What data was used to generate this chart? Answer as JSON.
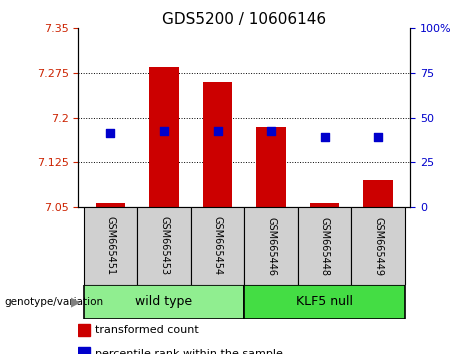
{
  "title": "GDS5200 / 10606146",
  "samples": [
    "GSM665451",
    "GSM665453",
    "GSM665454",
    "GSM665446",
    "GSM665448",
    "GSM665449"
  ],
  "red_bar_top": [
    7.057,
    7.285,
    7.26,
    7.185,
    7.057,
    7.095
  ],
  "red_bar_base": 7.05,
  "blue_dot_left": [
    7.175,
    7.178,
    7.178,
    7.178,
    7.168,
    7.168
  ],
  "ylim_left": [
    7.05,
    7.35
  ],
  "ylim_right": [
    0,
    100
  ],
  "yticks_left": [
    7.05,
    7.125,
    7.2,
    7.275,
    7.35
  ],
  "ytick_labels_left": [
    "7.05",
    "7.125",
    "7.2",
    "7.275",
    "7.35"
  ],
  "yticks_right": [
    0,
    25,
    50,
    75,
    100
  ],
  "ytick_labels_right": [
    "0",
    "25",
    "50",
    "75",
    "100%"
  ],
  "grid_ticks": [
    7.125,
    7.2,
    7.275
  ],
  "groups": [
    {
      "label": "wild type",
      "indices": [
        0,
        1,
        2
      ],
      "bg": "#90ee90"
    },
    {
      "label": "KLF5 null",
      "indices": [
        3,
        4,
        5
      ],
      "bg": "#44dd44"
    }
  ],
  "group_row_label": "genotype/variation",
  "legend_items": [
    {
      "color": "#cc0000",
      "label": "transformed count"
    },
    {
      "color": "#0000cc",
      "label": "percentile rank within the sample"
    }
  ],
  "bar_color": "#cc0000",
  "dot_color": "#0000cc",
  "left_tick_color": "#cc2200",
  "right_tick_color": "#0000cc",
  "bg_plot": "#ffffff",
  "bg_sample_box": "#d0d0d0",
  "bar_width": 0.55,
  "dot_size": 28,
  "title_fontsize": 11,
  "tick_fontsize": 8,
  "sample_fontsize": 7,
  "group_fontsize": 9,
  "legend_fontsize": 8
}
